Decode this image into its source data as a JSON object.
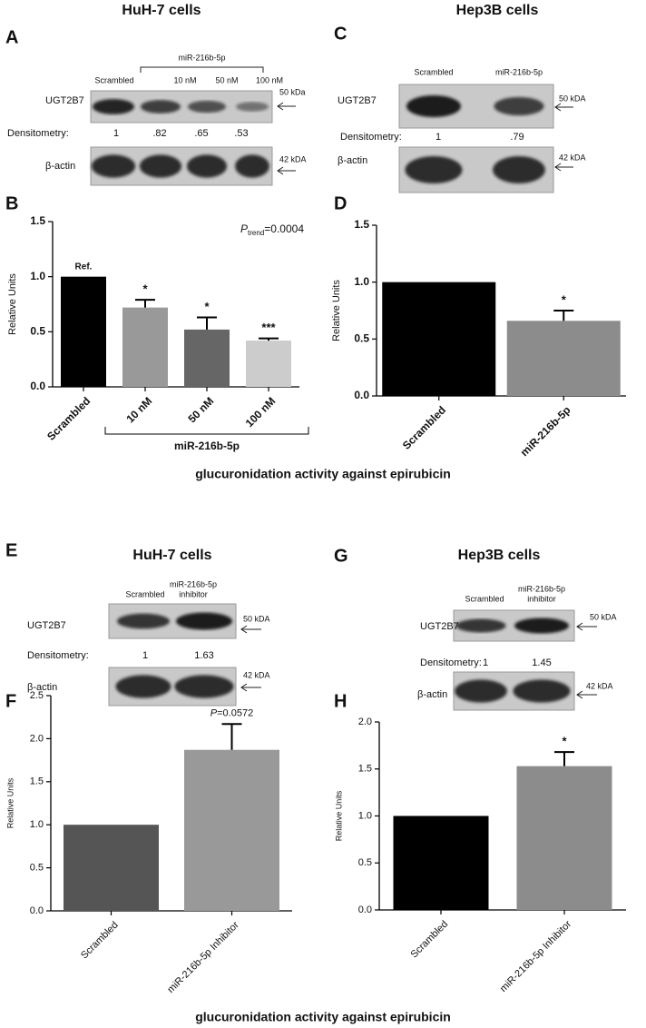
{
  "blots": [
    {
      "panel": "A",
      "title": "HuH-7 cells",
      "lanes": [
        "Scrambled",
        "10 nM",
        "50 nM",
        "100 nM"
      ],
      "group_label": "miR-216b-5p",
      "protein": "UGT2B7",
      "protein_kda": "50 kDa",
      "densitometry_label": "Densitometry:",
      "densitometry": [
        1,
        {
          "value": 0.82,
          "label": ".82"
        },
        {
          "value": 0.65,
          "label": ".65"
        },
        {
          "value": 0.53,
          "label": ".53"
        }
      ],
      "control": "β-actin",
      "control_kda": "42 kDA"
    },
    {
      "panel": "C",
      "title": "Hep3B cells",
      "lanes": [
        "Scrambled",
        "miR-216b-5p"
      ],
      "protein": "UGT2B7",
      "protein_kda": "50 kDA",
      "densitometry_label": "Densitometry:",
      "densitometry": [
        1,
        {
          "value": 0.79,
          "label": ".79"
        }
      ],
      "control": "β-actin",
      "control_kda": "42 kDA"
    },
    {
      "panel": "E",
      "title": "HuH-7 cells",
      "lanes": [
        "Scrambled",
        [
          "miR-216b-5p",
          "inhibitor"
        ]
      ],
      "protein": "UGT2B7",
      "protein_kda": "50 kDA",
      "densitometry_label": "Densitometry:",
      "densitometry": [
        1,
        1.63
      ],
      "control": "β-actin",
      "control_kda": "42 kDA"
    },
    {
      "panel": "G",
      "title": "Hep3B cells",
      "lanes": [
        "Scrambled",
        [
          "miR-216b-5p",
          "inhibitor"
        ]
      ],
      "protein": "UGT2B7",
      "protein_kda": "50 kDA",
      "densitometry_label": "Densitometry:",
      "densitometry": [
        1,
        1.45
      ],
      "control": "β-actin",
      "control_kda": "42 kDA"
    }
  ],
  "chart_data": [
    {
      "type": "bar",
      "panel": "B",
      "ylabel": "Relative Units",
      "categories": [
        "Scrambled",
        "10 nM",
        "50 nM",
        "100 nM"
      ],
      "values": [
        1,
        0.72,
        0.52,
        0.42
      ],
      "errors": [
        null,
        0.07,
        0.11,
        0.02
      ],
      "colors": [
        "#000000",
        "#999999",
        "#666666",
        "#cccccc"
      ],
      "annotations": [
        "Ref.",
        "*",
        "*",
        "***"
      ],
      "group_label": "miR-216b-5p",
      "p_value": {
        "symbol": "P",
        "subscript": "trend",
        "text": "=0.0004"
      },
      "ylim": [
        0,
        1.5
      ],
      "yticks": [
        {
          "value": 0,
          "label": "0.0"
        },
        {
          "value": 0.5,
          "label": "0.5"
        },
        {
          "value": 1,
          "label": "1.0"
        },
        {
          "value": 1.5,
          "label": "1.5"
        }
      ]
    },
    {
      "type": "bar",
      "panel": "D",
      "ylabel": "Relative Units",
      "categories": [
        "Scrambled",
        "miR-216b-5p"
      ],
      "values": [
        1,
        0.66
      ],
      "errors": [
        null,
        0.09
      ],
      "colors": [
        "#000000",
        "#8c8c8c"
      ],
      "annotations": [
        null,
        "*"
      ],
      "ylim": [
        0,
        1.5
      ],
      "yticks": [
        {
          "value": 0,
          "label": "0.0"
        },
        {
          "value": 0.5,
          "label": "0.5"
        },
        {
          "value": 1,
          "label": "1.0"
        },
        {
          "value": 1.5,
          "label": "1.5"
        }
      ]
    },
    {
      "type": "bar",
      "panel": "F",
      "ylabel": "Relative Units",
      "categories": [
        "Scrambled",
        "miR-216b-5p Inhibitor"
      ],
      "values": [
        1,
        1.87
      ],
      "errors": [
        null,
        0.3
      ],
      "colors": [
        "#555555",
        "#999999"
      ],
      "p_value": {
        "symbol": "P",
        "text": "=0.0572"
      },
      "ylim": [
        0,
        2.5
      ],
      "yticks": [
        {
          "value": 0,
          "label": "0.0"
        },
        {
          "value": 0.5,
          "label": "0.5"
        },
        {
          "value": 1,
          "label": "1.0"
        },
        {
          "value": 1.5,
          "label": "1.5"
        },
        {
          "value": 2,
          "label": "2.0"
        },
        {
          "value": 2.5,
          "label": "2.5"
        }
      ]
    },
    {
      "type": "bar",
      "panel": "H",
      "ylabel": "Relative Units",
      "categories": [
        "Scrambled",
        "miR-216b-5p Inhibitor"
      ],
      "values": [
        1,
        1.53
      ],
      "errors": [
        null,
        0.15
      ],
      "colors": [
        "#000000",
        "#8c8c8c"
      ],
      "annotations": [
        null,
        "*"
      ],
      "ylim": [
        0,
        2
      ],
      "yticks": [
        {
          "value": 0,
          "label": "0.0"
        },
        {
          "value": 0.5,
          "label": "0.5"
        },
        {
          "value": 1,
          "label": "1.0"
        },
        {
          "value": 1.5,
          "label": "1.5"
        },
        {
          "value": 2,
          "label": "2.0"
        }
      ]
    }
  ],
  "captions": [
    "glucuronidation activity against epirubicin",
    "glucuronidation activity against epirubicin"
  ]
}
